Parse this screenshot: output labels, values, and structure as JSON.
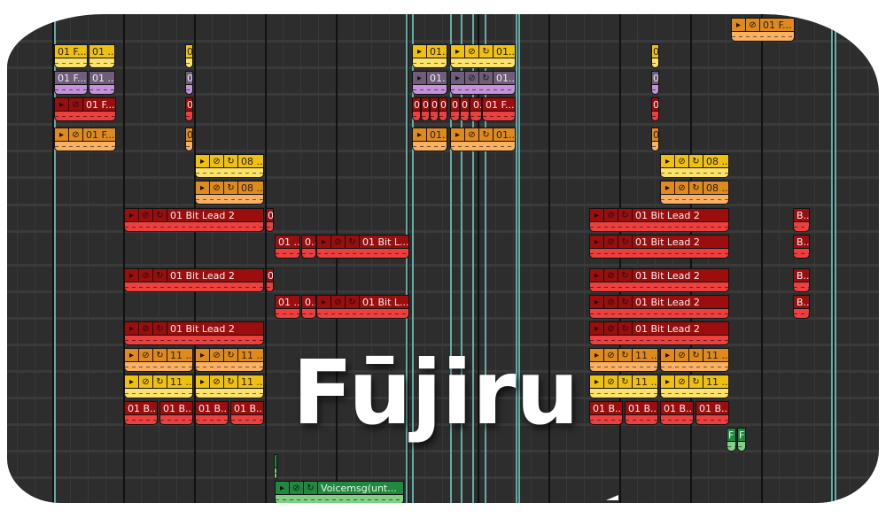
{
  "app": {
    "logo_text": "Fūjiru"
  },
  "colors": {
    "yellow": {
      "head": "#f0c010",
      "body": "#fde36c",
      "text": "#222"
    },
    "purple": {
      "head": "#6f5d7a",
      "body": "#c392da",
      "text": "#eee"
    },
    "red": {
      "head": "#9c0d0d",
      "body": "#ee3f3f",
      "text": "#f2f2f2"
    },
    "orange": {
      "head": "#e08a1e",
      "body": "#f9b062",
      "text": "#222"
    },
    "green": {
      "head": "#1f8a3d",
      "body": "#7fd083",
      "text": "#f2f2f2"
    },
    "marker": "#6cb8b4"
  },
  "clips": [
    {
      "track": -1,
      "start": 38.3,
      "length": 3.6,
      "color": "orange",
      "label": "01 F...",
      "icons": 2
    },
    {
      "track": 0,
      "start": 0.1,
      "length": 1.9,
      "color": "yellow",
      "label": "01 F...",
      "icons": 0
    },
    {
      "track": 0,
      "start": 2.05,
      "length": 1.5,
      "color": "yellow",
      "label": "01 ...",
      "icons": 0
    },
    {
      "track": 0,
      "start": 7.5,
      "length": 0.45,
      "color": "yellow",
      "label": "0",
      "icons": 0
    },
    {
      "track": 0,
      "start": 20.3,
      "length": 2.0,
      "color": "yellow",
      "label": "01...",
      "icons": 1
    },
    {
      "track": 0,
      "start": 22.45,
      "length": 3.7,
      "color": "yellow",
      "label": "01...",
      "icons": 3
    },
    {
      "track": 0,
      "start": 33.8,
      "length": 0.45,
      "color": "yellow",
      "label": "0",
      "icons": 0
    },
    {
      "track": 1,
      "start": 0.1,
      "length": 1.9,
      "color": "purple",
      "label": "01 F...",
      "icons": 0
    },
    {
      "track": 1,
      "start": 2.05,
      "length": 1.5,
      "color": "purple",
      "label": "01 ...",
      "icons": 0
    },
    {
      "track": 1,
      "start": 7.5,
      "length": 0.45,
      "color": "purple",
      "label": "0",
      "icons": 0
    },
    {
      "track": 1,
      "start": 20.3,
      "length": 2.0,
      "color": "purple",
      "label": "01...",
      "icons": 1
    },
    {
      "track": 1,
      "start": 22.45,
      "length": 3.7,
      "color": "purple",
      "label": "01...",
      "icons": 3
    },
    {
      "track": 1,
      "start": 33.8,
      "length": 0.45,
      "color": "purple",
      "label": "0",
      "icons": 0
    },
    {
      "track": 2,
      "start": 0.1,
      "length": 3.5,
      "color": "red",
      "label": "01 F...",
      "icons": 2
    },
    {
      "track": 2,
      "start": 7.5,
      "length": 0.45,
      "color": "red",
      "label": "0",
      "icons": 0
    },
    {
      "track": 2,
      "start": 20.3,
      "length": 0.5,
      "color": "red",
      "label": "0",
      "icons": 0
    },
    {
      "track": 2,
      "start": 20.8,
      "length": 0.5,
      "color": "red",
      "label": "0",
      "icons": 0
    },
    {
      "track": 2,
      "start": 21.3,
      "length": 0.5,
      "color": "red",
      "label": "0",
      "icons": 0
    },
    {
      "track": 2,
      "start": 21.8,
      "length": 0.5,
      "color": "red",
      "label": "0",
      "icons": 0
    },
    {
      "track": 2,
      "start": 22.45,
      "length": 0.55,
      "color": "red",
      "label": "0",
      "icons": 0
    },
    {
      "track": 2,
      "start": 23.0,
      "length": 0.55,
      "color": "red",
      "label": "0",
      "icons": 0
    },
    {
      "track": 2,
      "start": 23.55,
      "length": 0.7,
      "color": "red",
      "label": "0.",
      "icons": 0
    },
    {
      "track": 2,
      "start": 24.25,
      "length": 1.9,
      "color": "red",
      "label": "01 F...",
      "icons": 0
    },
    {
      "track": 2,
      "start": 33.8,
      "length": 0.45,
      "color": "red",
      "label": "0",
      "icons": 0
    },
    {
      "track": 3,
      "start": 0.1,
      "length": 3.5,
      "color": "orange",
      "label": "01 F...",
      "icons": 2
    },
    {
      "track": 3,
      "start": 7.5,
      "length": 0.45,
      "color": "orange",
      "label": "0",
      "icons": 0
    },
    {
      "track": 3,
      "start": 20.3,
      "length": 2.0,
      "color": "orange",
      "label": "01...",
      "icons": 1
    },
    {
      "track": 3,
      "start": 22.45,
      "length": 3.7,
      "color": "orange",
      "label": "01...",
      "icons": 3
    },
    {
      "track": 3,
      "start": 33.8,
      "length": 0.45,
      "color": "orange",
      "label": "0",
      "icons": 0
    },
    {
      "track": 4,
      "start": 8.05,
      "length": 3.9,
      "color": "yellow",
      "label": "08 ...",
      "icons": 3
    },
    {
      "track": 4,
      "start": 34.3,
      "length": 3.9,
      "color": "yellow",
      "label": "08 ...",
      "icons": 3
    },
    {
      "track": 5,
      "start": 8.05,
      "length": 3.9,
      "color": "orange",
      "label": "08 ...",
      "icons": 3
    },
    {
      "track": 5,
      "start": 34.3,
      "length": 3.9,
      "color": "orange",
      "label": "08 ...",
      "icons": 3
    },
    {
      "track": 6,
      "start": 4.05,
      "length": 7.9,
      "color": "red",
      "label": "01 Bit Lead 2",
      "icons": 3
    },
    {
      "track": 6,
      "start": 12.05,
      "length": 0.45,
      "color": "red",
      "label": "0",
      "icons": 0
    },
    {
      "track": 6,
      "start": 30.3,
      "length": 7.9,
      "color": "red",
      "label": "01 Bit Lead 2",
      "icons": 3
    },
    {
      "track": 6,
      "start": 41.8,
      "length": 0.95,
      "color": "red",
      "label": "B...",
      "icons": 0
    },
    {
      "track": 7,
      "start": 12.55,
      "length": 1.45,
      "color": "red",
      "label": "01 ...",
      "icons": 0
    },
    {
      "track": 7,
      "start": 14.05,
      "length": 0.85,
      "color": "red",
      "label": "0...",
      "icons": 0
    },
    {
      "track": 7,
      "start": 14.9,
      "length": 5.25,
      "color": "red",
      "label": "01 Bit L...",
      "icons": 3
    },
    {
      "track": 7,
      "start": 30.3,
      "length": 7.9,
      "color": "red",
      "label": "01 Bit Lead 2",
      "icons": 3
    },
    {
      "track": 7,
      "start": 41.8,
      "length": 0.95,
      "color": "red",
      "label": "B...",
      "icons": 0
    },
    {
      "track": 8,
      "start": 4.05,
      "length": 7.9,
      "color": "red",
      "label": "01 Bit Lead 2",
      "icons": 3
    },
    {
      "track": 8,
      "start": 12.05,
      "length": 0.45,
      "color": "red",
      "label": "0",
      "icons": 0
    },
    {
      "track": 8,
      "start": 30.3,
      "length": 7.9,
      "color": "red",
      "label": "01 Bit Lead 2",
      "icons": 3
    },
    {
      "track": 8,
      "start": 41.8,
      "length": 0.95,
      "color": "red",
      "label": "B...",
      "icons": 0
    },
    {
      "track": 9,
      "start": 12.55,
      "length": 1.45,
      "color": "red",
      "label": "01 ...",
      "icons": 0
    },
    {
      "track": 9,
      "start": 14.05,
      "length": 0.85,
      "color": "red",
      "label": "0...",
      "icons": 0
    },
    {
      "track": 9,
      "start": 14.9,
      "length": 5.25,
      "color": "red",
      "label": "01 Bit L...",
      "icons": 3
    },
    {
      "track": 9,
      "start": 30.3,
      "length": 7.9,
      "color": "red",
      "label": "01 Bit Lead 2",
      "icons": 3
    },
    {
      "track": 9,
      "start": 41.8,
      "length": 0.95,
      "color": "red",
      "label": "B...",
      "icons": 0
    },
    {
      "track": 10,
      "start": 4.05,
      "length": 7.9,
      "color": "red",
      "label": "01 Bit Lead 2",
      "icons": 3
    },
    {
      "track": 10,
      "start": 30.3,
      "length": 7.9,
      "color": "red",
      "label": "01 Bit Lead 2",
      "icons": 3
    },
    {
      "track": 11,
      "start": 4.05,
      "length": 3.9,
      "color": "orange",
      "label": "11 ...",
      "icons": 3
    },
    {
      "track": 11,
      "start": 8.05,
      "length": 3.9,
      "color": "orange",
      "label": "11 ...",
      "icons": 3
    },
    {
      "track": 11,
      "start": 30.3,
      "length": 3.9,
      "color": "orange",
      "label": "11 ...",
      "icons": 3
    },
    {
      "track": 11,
      "start": 34.3,
      "length": 3.9,
      "color": "orange",
      "label": "11 ...",
      "icons": 3
    },
    {
      "track": 12,
      "start": 4.05,
      "length": 3.9,
      "color": "yellow",
      "label": "11 ...",
      "icons": 3
    },
    {
      "track": 12,
      "start": 8.05,
      "length": 3.9,
      "color": "yellow",
      "label": "11 ...",
      "icons": 3
    },
    {
      "track": 12,
      "start": 30.3,
      "length": 3.9,
      "color": "yellow",
      "label": "11 ...",
      "icons": 3
    },
    {
      "track": 12,
      "start": 34.3,
      "length": 3.9,
      "color": "yellow",
      "label": "11 ...",
      "icons": 3
    },
    {
      "track": 13,
      "start": 4.05,
      "length": 1.9,
      "color": "red",
      "label": "01 B...",
      "icons": 0
    },
    {
      "track": 13,
      "start": 6.05,
      "length": 1.9,
      "color": "red",
      "label": "01 B...",
      "icons": 0
    },
    {
      "track": 13,
      "start": 8.05,
      "length": 1.9,
      "color": "red",
      "label": "01 B...",
      "icons": 0
    },
    {
      "track": 13,
      "start": 10.05,
      "length": 1.9,
      "color": "red",
      "label": "01 B...",
      "icons": 0
    },
    {
      "track": 13,
      "start": 30.3,
      "length": 1.9,
      "color": "red",
      "label": "01 B...",
      "icons": 0
    },
    {
      "track": 13,
      "start": 32.3,
      "length": 1.9,
      "color": "red",
      "label": "01 B...",
      "icons": 0
    },
    {
      "track": 13,
      "start": 34.3,
      "length": 1.9,
      "color": "red",
      "label": "01 B...",
      "icons": 0
    },
    {
      "track": 13,
      "start": 36.3,
      "length": 1.9,
      "color": "red",
      "label": "01 B...",
      "icons": 0
    },
    {
      "track": 14,
      "start": 38.05,
      "length": 0.55,
      "color": "green",
      "label": "F",
      "icons": 0
    },
    {
      "track": 14,
      "start": 38.65,
      "length": 0.5,
      "color": "green",
      "label": "F",
      "icons": 0
    },
    {
      "track": 15,
      "start": 12.5,
      "length": 0.15,
      "color": "green",
      "label": "",
      "icons": 0
    },
    {
      "track": 16,
      "start": 12.55,
      "length": 7.3,
      "color": "green",
      "label": "Voicemsg(unt...",
      "icons": 3
    }
  ]
}
